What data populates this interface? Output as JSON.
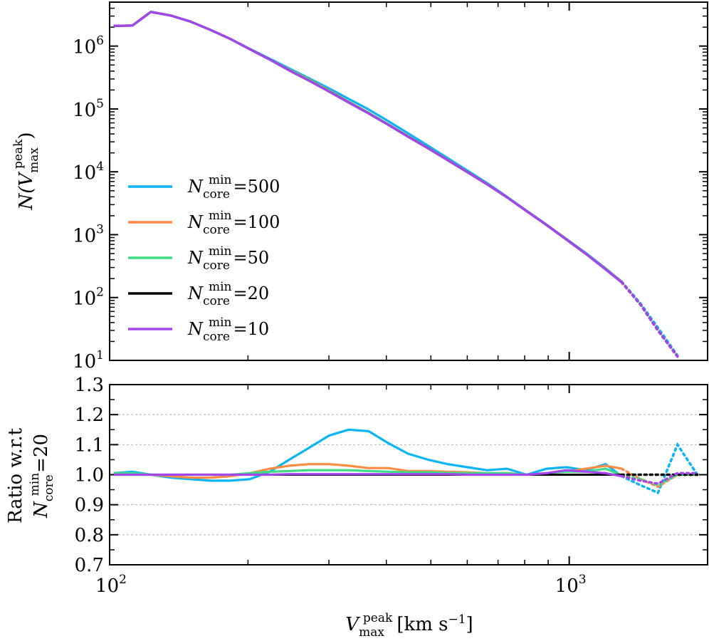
{
  "colors": {
    "Ncore500": "#0bb4f3",
    "Ncore100": "#ff8c42",
    "Ncore50": "#3ddc84",
    "Ncore20": "#000000",
    "Ncore10": "#a445ee",
    "grid": "#b0b0b0"
  },
  "chart_data": [
    {
      "type": "line",
      "panel": "top",
      "xscale": "log",
      "yscale": "log",
      "xlim": [
        100,
        2000
      ],
      "ylim": [
        10,
        5000000
      ],
      "ylabel": "N(V_max^peak)",
      "ylabel_main": "N(V",
      "ylabel_sub": "max",
      "ylabel_sup": "peak",
      "ylabel_close": ")",
      "yticks": [
        {
          "value": 10,
          "base": "10",
          "exp": "1"
        },
        {
          "value": 100,
          "base": "10",
          "exp": "2"
        },
        {
          "value": 1000,
          "base": "10",
          "exp": "3"
        },
        {
          "value": 10000,
          "base": "10",
          "exp": "4"
        },
        {
          "value": 100000,
          "base": "10",
          "exp": "5"
        },
        {
          "value": 1000000,
          "base": "10",
          "exp": "6"
        }
      ],
      "solid_until_x": 1300,
      "legend": {
        "location": "lower left",
        "entries": [
          {
            "key": "Ncore500",
            "prefix": "N",
            "sub": "core",
            "sup": "min",
            "value": "=500"
          },
          {
            "key": "Ncore100",
            "prefix": "N",
            "sub": "core",
            "sup": "min",
            "value": "=100"
          },
          {
            "key": "Ncore50",
            "prefix": "N",
            "sub": "core",
            "sup": "min",
            "value": "=50"
          },
          {
            "key": "Ncore20",
            "prefix": "N",
            "sub": "core",
            "sup": "min",
            "value": "=20"
          },
          {
            "key": "Ncore10",
            "prefix": "N",
            "sub": "core",
            "sup": "min",
            "value": "=10"
          }
        ]
      },
      "series": [
        {
          "name": "N_core^min=500",
          "key": "Ncore500",
          "x": [
            102,
            112,
            123,
            136,
            150,
            166,
            183,
            202,
            223,
            246,
            272,
            300,
            331,
            366,
            404,
            446,
            493,
            544,
            600,
            663,
            732,
            808,
            892,
            985,
            1087,
            1200,
            1300,
            1430,
            1560,
            1720
          ],
          "y": [
            2100000.0,
            2120000.0,
            3500000.0,
            3050000.0,
            2450000.0,
            1800000.0,
            1300000.0,
            900000.0,
            630000.0,
            440000.0,
            305000.0,
            213000.0,
            145000.0,
            98000.0,
            64000.0,
            41000.0,
            26000.0,
            16500.0,
            10500.0,
            6600.0,
            4000.0,
            2400.0,
            1450.0,
            860.0,
            510.0,
            290.0,
            180.0,
            80,
            33,
            12
          ]
        },
        {
          "name": "N_core^min=100",
          "key": "Ncore100",
          "x": [
            102,
            112,
            123,
            136,
            150,
            166,
            183,
            202,
            223,
            246,
            272,
            300,
            331,
            366,
            404,
            446,
            493,
            544,
            600,
            663,
            732,
            808,
            892,
            985,
            1087,
            1200,
            1300,
            1430,
            1560,
            1720
          ],
          "y": [
            2100000.0,
            2120000.0,
            3500000.0,
            3050000.0,
            2450000.0,
            1800000.0,
            1300000.0,
            890000.0,
            610000.0,
            420000.0,
            290000.0,
            197000.0,
            131000.0,
            87000.0,
            57000.0,
            37000.0,
            24000.0,
            15500.0,
            10000.0,
            6400.0,
            3950.0,
            2380.0,
            1440.0,
            850.0,
            500.0,
            285.0,
            178.0,
            77,
            30,
            11.5
          ]
        },
        {
          "name": "N_core^min=50",
          "key": "Ncore50",
          "x": [
            102,
            112,
            123,
            136,
            150,
            166,
            183,
            202,
            223,
            246,
            272,
            300,
            331,
            366,
            404,
            446,
            493,
            544,
            600,
            663,
            732,
            808,
            892,
            985,
            1087,
            1200,
            1300,
            1430,
            1560,
            1720
          ],
          "y": [
            2100000.0,
            2120000.0,
            3500000.0,
            3050000.0,
            2450000.0,
            1800000.0,
            1300000.0,
            890000.0,
            610000.0,
            415000.0,
            285000.0,
            193000.0,
            129000.0,
            86000.0,
            56500.0,
            36500.0,
            23800.0,
            15400.0,
            9950.0,
            6350.0,
            3940.0,
            2370.0,
            1430.0,
            845.0,
            497.0,
            282.0,
            176.0,
            77,
            30,
            11.5
          ]
        },
        {
          "name": "N_core^min=20",
          "key": "Ncore20",
          "x": [
            102,
            112,
            123,
            136,
            150,
            166,
            183,
            202,
            223,
            246,
            272,
            300,
            331,
            366,
            404,
            446,
            493,
            544,
            600,
            663,
            732,
            808,
            892,
            985,
            1087,
            1200,
            1300,
            1430,
            1560,
            1720
          ],
          "y": [
            2100000.0,
            2120000.0,
            3500000.0,
            3050000.0,
            2450000.0,
            1800000.0,
            1300000.0,
            890000.0,
            610000.0,
            410000.0,
            280000.0,
            190000.0,
            127000.0,
            85000.0,
            56000.0,
            36200.0,
            23700.0,
            15300.0,
            9900.0,
            6300.0,
            3930.0,
            2360.0,
            1430.0,
            840.0,
            495.0,
            280.0,
            175.0,
            77,
            30,
            11.5
          ]
        },
        {
          "name": "N_core^min=10",
          "key": "Ncore10",
          "x": [
            102,
            112,
            123,
            136,
            150,
            166,
            183,
            202,
            223,
            246,
            272,
            300,
            331,
            366,
            404,
            446,
            493,
            544,
            600,
            663,
            732,
            808,
            892,
            985,
            1087,
            1200,
            1300,
            1430,
            1560,
            1720
          ],
          "y": [
            2100000.0,
            2120000.0,
            3500000.0,
            3050000.0,
            2450000.0,
            1800000.0,
            1300000.0,
            890000.0,
            610000.0,
            410000.0,
            280000.0,
            190000.0,
            127000.0,
            85000.0,
            56000.0,
            36200.0,
            23700.0,
            15300.0,
            9900.0,
            6300.0,
            3930.0,
            2360.0,
            1430.0,
            840.0,
            495.0,
            280.0,
            175.0,
            77,
            30,
            11.5
          ]
        }
      ]
    },
    {
      "type": "line",
      "panel": "bottom",
      "xscale": "log",
      "yscale": "linear",
      "xlim": [
        100,
        2000
      ],
      "ylim": [
        0.7,
        1.3
      ],
      "grid": "horizontal dashed",
      "xlabel": "V_max^peak [km s^-1]",
      "xlabel_main": "V",
      "xlabel_sub": "max",
      "xlabel_sup": "peak",
      "xlabel_units": "[km s",
      "xlabel_units_exp": "−1",
      "xlabel_units_close": "]",
      "ylabel_line1": "Ratio w.r.t",
      "ylabel_line2_prefix": "N",
      "ylabel_line2_sub": "core",
      "ylabel_line2_sup": "min",
      "ylabel_line2_value": "=20",
      "xticks": [
        {
          "value": 100,
          "base": "10",
          "exp": "2"
        },
        {
          "value": 1000,
          "base": "10",
          "exp": "3"
        }
      ],
      "yticks": [
        "0.7",
        "0.8",
        "0.9",
        "1.0",
        "1.1",
        "1.2",
        "1.3"
      ],
      "ytick_values": [
        0.7,
        0.8,
        0.9,
        1.0,
        1.1,
        1.2,
        1.3
      ],
      "solid_until_x": 1300,
      "series": [
        {
          "name": "N_core^min=500",
          "key": "Ncore500",
          "x": [
            102,
            112,
            123,
            136,
            150,
            166,
            183,
            202,
            223,
            246,
            272,
            300,
            331,
            366,
            404,
            446,
            493,
            544,
            600,
            663,
            732,
            808,
            892,
            985,
            1087,
            1200,
            1300,
            1430,
            1560,
            1720,
            1900
          ],
          "y": [
            1.005,
            1.01,
            1.0,
            0.99,
            0.985,
            0.98,
            0.98,
            0.985,
            1.01,
            1.05,
            1.09,
            1.13,
            1.15,
            1.145,
            1.105,
            1.07,
            1.05,
            1.035,
            1.025,
            1.015,
            1.02,
            1.0,
            1.02,
            1.025,
            1.015,
            1.035,
            0.995,
            0.965,
            0.94,
            1.1,
            1.0
          ]
        },
        {
          "name": "N_core^min=100",
          "key": "Ncore100",
          "x": [
            102,
            112,
            123,
            136,
            150,
            166,
            183,
            202,
            223,
            246,
            272,
            300,
            331,
            366,
            404,
            446,
            493,
            544,
            600,
            663,
            732,
            808,
            892,
            985,
            1087,
            1200,
            1300,
            1430,
            1560,
            1720,
            1900
          ],
          "y": [
            1.0,
            1.0,
            1.0,
            0.995,
            0.99,
            0.99,
            0.995,
            1.005,
            1.02,
            1.03,
            1.035,
            1.035,
            1.03,
            1.022,
            1.022,
            1.012,
            1.012,
            1.01,
            1.008,
            1.005,
            1.005,
            1.0,
            1.005,
            1.01,
            1.02,
            1.03,
            1.02,
            0.985,
            0.96,
            1.0,
            1.0
          ]
        },
        {
          "name": "N_core^min=50",
          "key": "Ncore50",
          "x": [
            102,
            112,
            123,
            136,
            150,
            166,
            183,
            202,
            223,
            246,
            272,
            300,
            331,
            366,
            404,
            446,
            493,
            544,
            600,
            663,
            732,
            808,
            892,
            985,
            1087,
            1200,
            1300,
            1430,
            1560,
            1720,
            1900
          ],
          "y": [
            1.005,
            1.005,
            1.0,
            1.0,
            1.0,
            1.0,
            1.0,
            1.005,
            1.01,
            1.012,
            1.015,
            1.015,
            1.015,
            1.012,
            1.01,
            1.008,
            1.008,
            1.006,
            1.005,
            1.005,
            1.005,
            1.0,
            1.005,
            1.01,
            1.01,
            1.02,
            0.998,
            0.985,
            0.965,
            1.0,
            1.0
          ]
        },
        {
          "name": "N_core^min=20",
          "key": "Ncore20",
          "x": [
            102,
            1900
          ],
          "y": [
            1.0,
            1.0
          ]
        },
        {
          "name": "N_core^min=10",
          "key": "Ncore10",
          "x": [
            102,
            112,
            123,
            136,
            150,
            166,
            183,
            202,
            223,
            246,
            272,
            300,
            331,
            366,
            404,
            446,
            493,
            544,
            600,
            663,
            732,
            808,
            892,
            985,
            1087,
            1200,
            1300,
            1430,
            1560,
            1720,
            1900
          ],
          "y": [
            1.0,
            1.0,
            1.0,
            1.0,
            1.0,
            1.0,
            1.0,
            1.0,
            1.0,
            1.002,
            1.002,
            1.002,
            1.002,
            1.002,
            1.002,
            1.002,
            1.002,
            1.002,
            1.0,
            1.0,
            1.0,
            1.0,
            1.005,
            1.015,
            1.01,
            1.005,
            0.995,
            0.98,
            0.97,
            1.005,
            1.005
          ]
        }
      ]
    }
  ]
}
